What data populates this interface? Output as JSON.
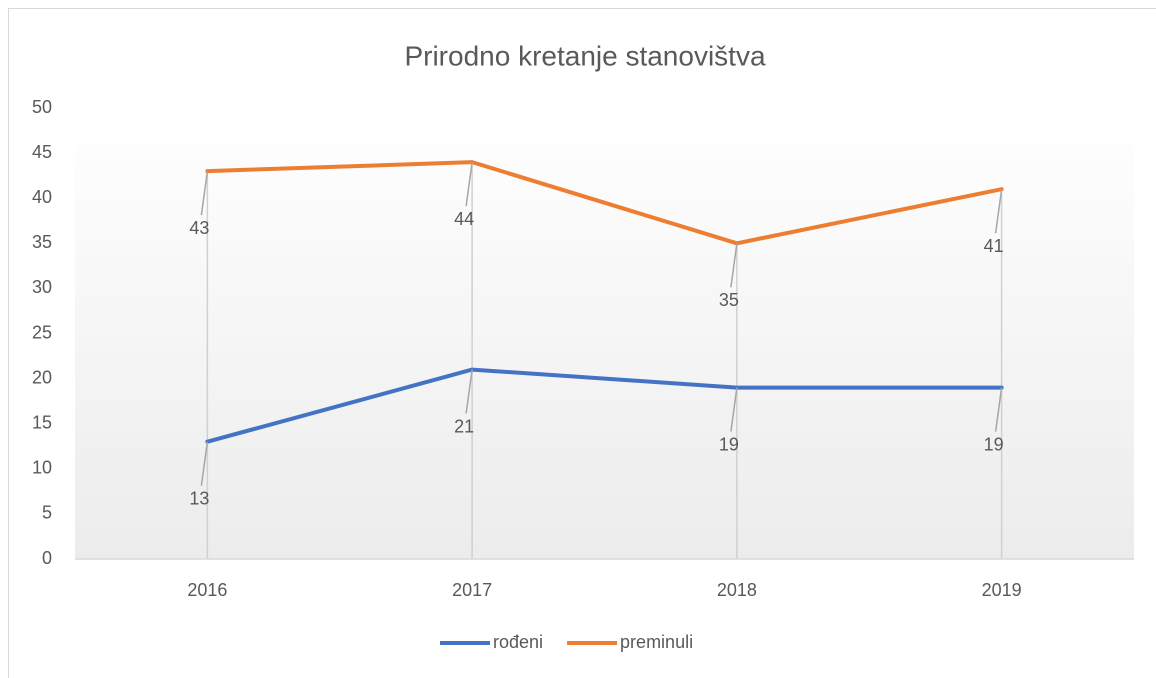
{
  "chart_data": {
    "type": "line",
    "title": "Prirodno kretanje stanovištva",
    "categories": [
      "2016",
      "2017",
      "2018",
      "2019"
    ],
    "series": [
      {
        "name": "rođeni",
        "color": "#4472c4",
        "values": [
          13,
          21,
          19,
          19
        ]
      },
      {
        "name": "preminuli",
        "color": "#ed7d31",
        "values": [
          43,
          44,
          35,
          41
        ]
      }
    ],
    "ylim": [
      0,
      50
    ],
    "yticks": [
      0,
      5,
      10,
      15,
      20,
      25,
      30,
      35,
      40,
      45,
      50
    ],
    "drop_lines": true,
    "legend": "bottom"
  }
}
